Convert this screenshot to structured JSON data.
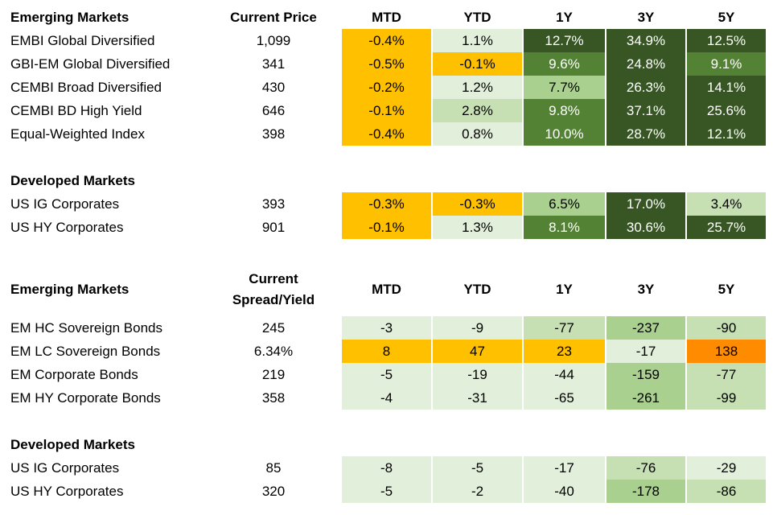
{
  "colors": {
    "orange": "#ffc000",
    "deep_orange": "#ff8c00",
    "very_light_green": "#e2efda",
    "light_green": "#c6e0b4",
    "mid_green": "#a9d08e",
    "green": "#548235",
    "dark_green": "#375623"
  },
  "section1": {
    "header": {
      "label": "Emerging Markets",
      "price": "Current Price",
      "cols": [
        "MTD",
        "YTD",
        "1Y",
        "3Y",
        "5Y"
      ]
    },
    "rows": [
      {
        "label": "EMBI Global Diversified",
        "value": "1,099",
        "cells": [
          {
            "text": "-0.4%",
            "color": "orange"
          },
          {
            "text": "1.1%",
            "color": "very_light_green"
          },
          {
            "text": "12.7%",
            "color": "dark_green"
          },
          {
            "text": "34.9%",
            "color": "dark_green"
          },
          {
            "text": "12.5%",
            "color": "dark_green"
          }
        ]
      },
      {
        "label": "GBI-EM Global Diversified",
        "value": "341",
        "cells": [
          {
            "text": "-0.5%",
            "color": "orange"
          },
          {
            "text": "-0.1%",
            "color": "orange"
          },
          {
            "text": "9.6%",
            "color": "green"
          },
          {
            "text": "24.8%",
            "color": "dark_green"
          },
          {
            "text": "9.1%",
            "color": "green"
          }
        ]
      },
      {
        "label": "CEMBI Broad Diversified",
        "value": "430",
        "cells": [
          {
            "text": "-0.2%",
            "color": "orange"
          },
          {
            "text": "1.2%",
            "color": "very_light_green"
          },
          {
            "text": "7.7%",
            "color": "mid_green"
          },
          {
            "text": "26.3%",
            "color": "dark_green"
          },
          {
            "text": "14.1%",
            "color": "dark_green"
          }
        ]
      },
      {
        "label": "CEMBI BD High Yield",
        "value": "646",
        "cells": [
          {
            "text": "-0.1%",
            "color": "orange"
          },
          {
            "text": "2.8%",
            "color": "light_green"
          },
          {
            "text": "9.8%",
            "color": "green"
          },
          {
            "text": "37.1%",
            "color": "dark_green"
          },
          {
            "text": "25.6%",
            "color": "dark_green"
          }
        ]
      },
      {
        "label": "Equal-Weighted Index",
        "value": "398",
        "cells": [
          {
            "text": "-0.4%",
            "color": "orange"
          },
          {
            "text": "0.8%",
            "color": "very_light_green"
          },
          {
            "text": "10.0%",
            "color": "green"
          },
          {
            "text": "28.7%",
            "color": "dark_green"
          },
          {
            "text": "12.1%",
            "color": "dark_green"
          }
        ]
      }
    ]
  },
  "section2": {
    "header": {
      "label": "Developed Markets"
    },
    "rows": [
      {
        "label": "US IG Corporates",
        "value": "393",
        "cells": [
          {
            "text": "-0.3%",
            "color": "orange"
          },
          {
            "text": "-0.3%",
            "color": "orange"
          },
          {
            "text": "6.5%",
            "color": "mid_green"
          },
          {
            "text": "17.0%",
            "color": "dark_green"
          },
          {
            "text": "3.4%",
            "color": "light_green"
          }
        ]
      },
      {
        "label": "US HY Corporates",
        "value": "901",
        "cells": [
          {
            "text": "-0.1%",
            "color": "orange"
          },
          {
            "text": "1.3%",
            "color": "very_light_green"
          },
          {
            "text": "8.1%",
            "color": "green"
          },
          {
            "text": "30.6%",
            "color": "dark_green"
          },
          {
            "text": "25.7%",
            "color": "dark_green"
          }
        ]
      }
    ]
  },
  "section3": {
    "header": {
      "label": "Emerging Markets",
      "price_line1": "Current",
      "price_line2": "Spread/Yield",
      "cols": [
        "MTD",
        "YTD",
        "1Y",
        "3Y",
        "5Y"
      ]
    },
    "rows": [
      {
        "label": "EM HC Sovereign Bonds",
        "value": "245",
        "cells": [
          {
            "text": "-3",
            "color": "very_light_green"
          },
          {
            "text": "-9",
            "color": "very_light_green"
          },
          {
            "text": "-77",
            "color": "light_green"
          },
          {
            "text": "-237",
            "color": "mid_green"
          },
          {
            "text": "-90",
            "color": "light_green"
          }
        ]
      },
      {
        "label": "EM LC Sovereign Bonds",
        "value": "6.34%",
        "cells": [
          {
            "text": "8",
            "color": "orange"
          },
          {
            "text": "47",
            "color": "orange"
          },
          {
            "text": "23",
            "color": "orange"
          },
          {
            "text": "-17",
            "color": "very_light_green"
          },
          {
            "text": "138",
            "color": "deep_orange"
          }
        ]
      },
      {
        "label": "EM Corporate Bonds",
        "value": "219",
        "cells": [
          {
            "text": "-5",
            "color": "very_light_green"
          },
          {
            "text": "-19",
            "color": "very_light_green"
          },
          {
            "text": "-44",
            "color": "very_light_green"
          },
          {
            "text": "-159",
            "color": "mid_green"
          },
          {
            "text": "-77",
            "color": "light_green"
          }
        ]
      },
      {
        "label": "EM HY Corporate Bonds",
        "value": "358",
        "cells": [
          {
            "text": "-4",
            "color": "very_light_green"
          },
          {
            "text": "-31",
            "color": "very_light_green"
          },
          {
            "text": "-65",
            "color": "very_light_green"
          },
          {
            "text": "-261",
            "color": "mid_green"
          },
          {
            "text": "-99",
            "color": "light_green"
          }
        ]
      }
    ]
  },
  "section4": {
    "header": {
      "label": "Developed Markets"
    },
    "rows": [
      {
        "label": "US IG Corporates",
        "value": "85",
        "cells": [
          {
            "text": "-8",
            "color": "very_light_green"
          },
          {
            "text": "-5",
            "color": "very_light_green"
          },
          {
            "text": "-17",
            "color": "very_light_green"
          },
          {
            "text": "-76",
            "color": "light_green"
          },
          {
            "text": "-29",
            "color": "very_light_green"
          }
        ]
      },
      {
        "label": "US HY Corporates",
        "value": "320",
        "cells": [
          {
            "text": "-5",
            "color": "very_light_green"
          },
          {
            "text": "-2",
            "color": "very_light_green"
          },
          {
            "text": "-40",
            "color": "very_light_green"
          },
          {
            "text": "-178",
            "color": "mid_green"
          },
          {
            "text": "-86",
            "color": "light_green"
          }
        ]
      }
    ]
  }
}
